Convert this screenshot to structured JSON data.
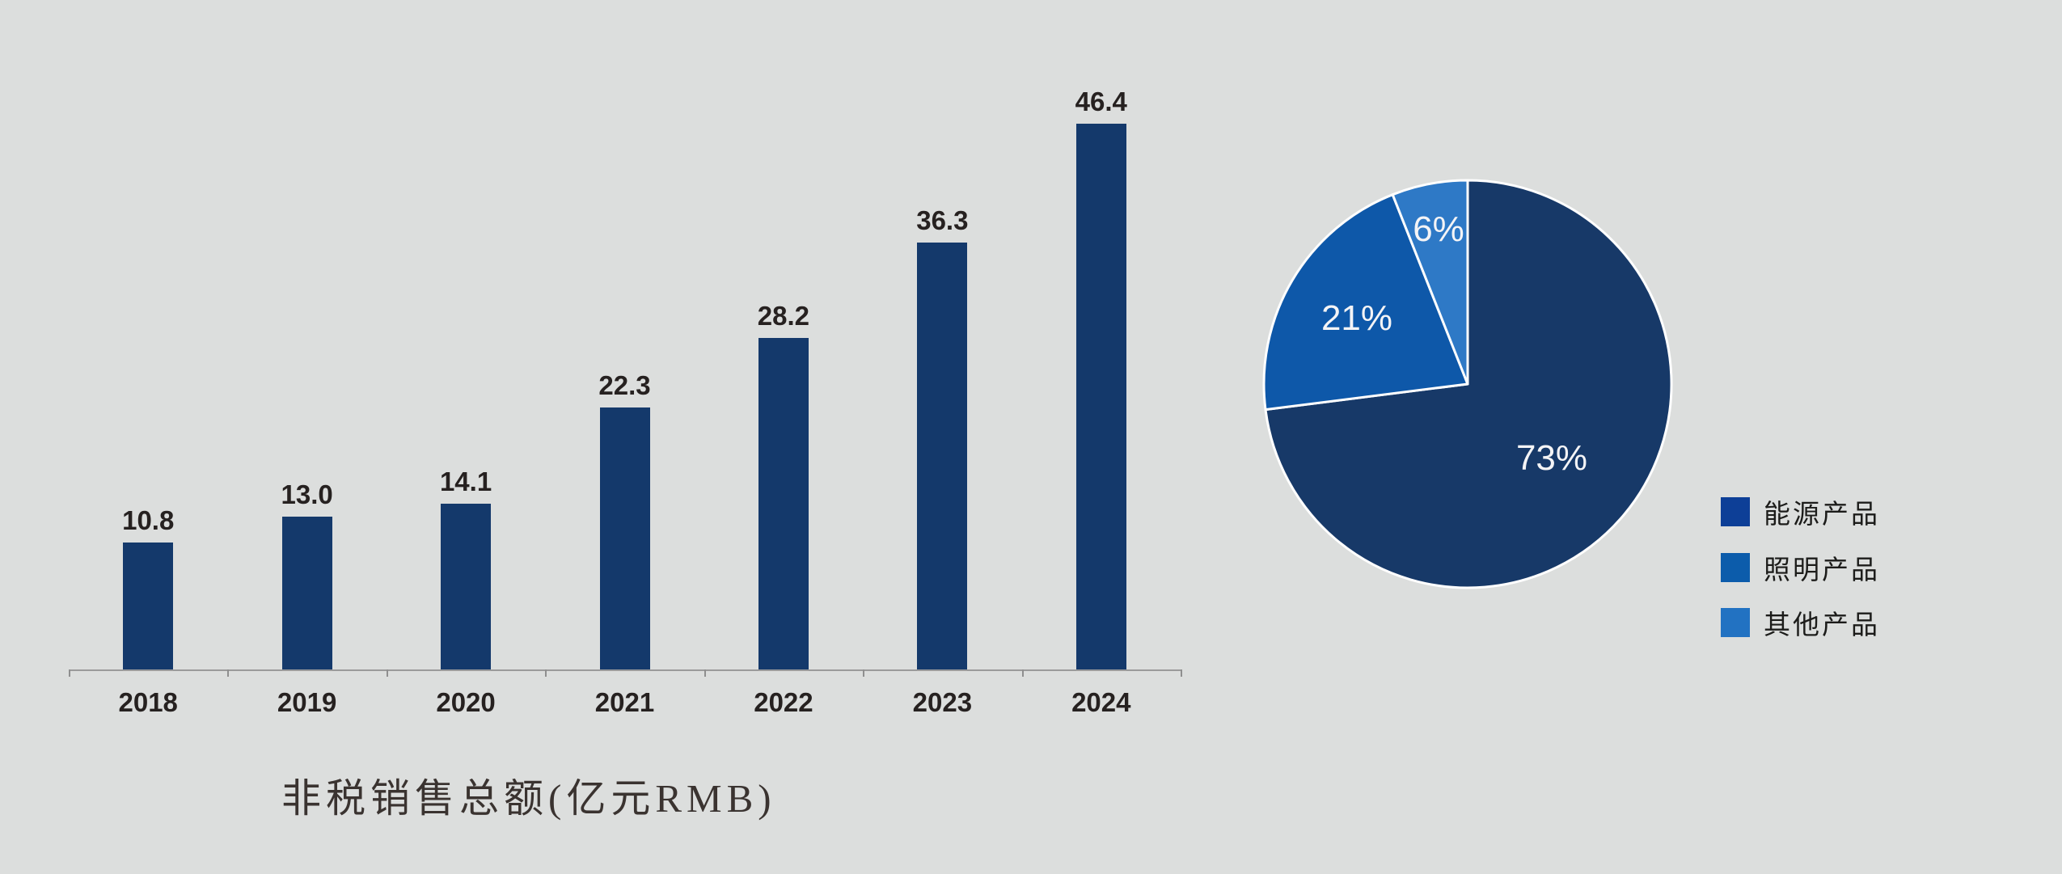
{
  "page": {
    "background_color": "#dcdedd"
  },
  "chart_data": [
    {
      "type": "bar",
      "title": "非税销售总额(亿元RMB)",
      "categories": [
        "2018",
        "2019",
        "2020",
        "2021",
        "2022",
        "2023",
        "2024"
      ],
      "values": [
        10.8,
        13.0,
        14.1,
        22.3,
        28.2,
        36.3,
        46.4
      ],
      "value_labels": [
        "10.8",
        "13.0",
        "14.1",
        "22.3",
        "28.2",
        "36.3",
        "46.4"
      ],
      "ylim": [
        0,
        50
      ],
      "xlabel": "",
      "ylabel": "",
      "grid": false,
      "bar_color": "#14396b",
      "axis_color": "#9b9b9b",
      "tick_color": "#8f8f8f",
      "label_color": "#262120",
      "title_color": "#3a3330"
    },
    {
      "type": "pie",
      "start_angle": "12-o-clock",
      "direction": "clockwise",
      "slices": [
        {
          "label": "能源产品",
          "percent": 73,
          "display": "73%",
          "color": "#173968",
          "legend_color": "#0d3f97"
        },
        {
          "label": "照明产品",
          "percent": 21,
          "display": "21%",
          "color": "#0e58a9",
          "legend_color": "#0c5cab"
        },
        {
          "label": "其他产品",
          "percent": 6,
          "display": "6%",
          "color": "#2e79c6",
          "legend_color": "#2272c2"
        }
      ],
      "slice_border_color": "#ffffff",
      "slice_label_color": "#f4f4f6",
      "legend_position": "right",
      "legend_text_color": "#1c1c1a"
    }
  ]
}
